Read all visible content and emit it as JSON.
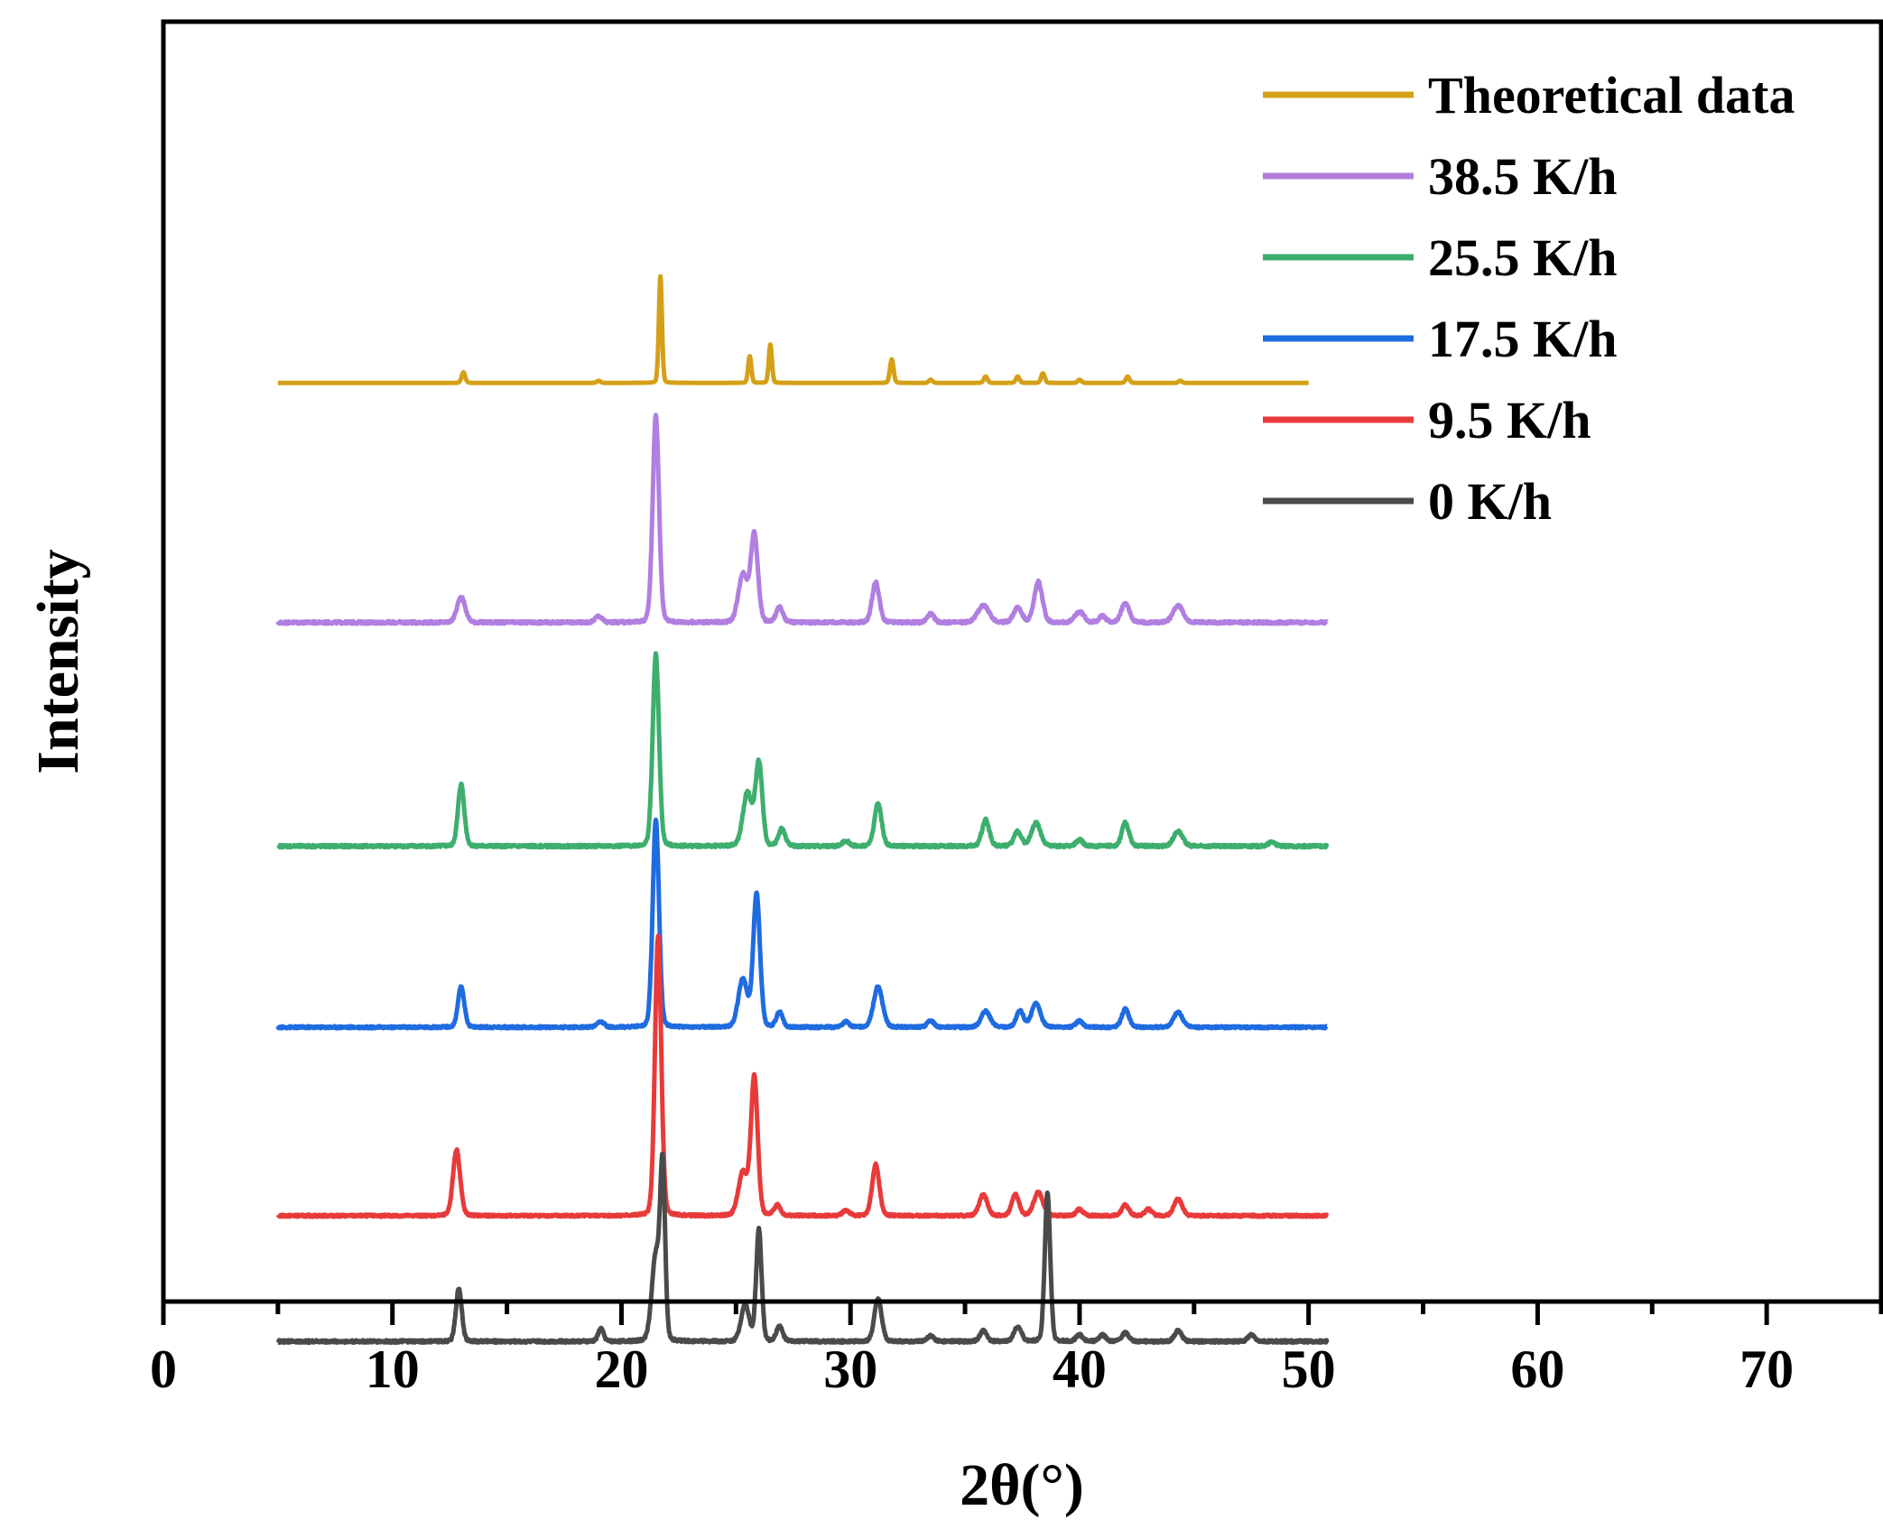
{
  "chart_data": {
    "type": "line",
    "title": "",
    "xlabel": "2θ(°)",
    "ylabel": "Intensity",
    "xlim": [
      0,
      75
    ],
    "x_ticks": [
      "0",
      "10",
      "20",
      "30",
      "40",
      "50",
      "60",
      "70"
    ],
    "x_tick_values": [
      0,
      10,
      20,
      30,
      40,
      50,
      60,
      70
    ],
    "x_minor_ticks": [
      5,
      15,
      25,
      35,
      45,
      55,
      65,
      75
    ],
    "y_ticks": "none",
    "grid": false,
    "legend_position": "top-right",
    "x_range_measured": [
      5,
      50.8
    ],
    "series": [
      {
        "name": "Theoretical data",
        "color": "#D4A017",
        "offset": 8.1,
        "x_end": 50.0,
        "noise": 0,
        "peaks": [
          {
            "x": 13.1,
            "h": 0.1,
            "w": 0.08
          },
          {
            "x": 19.0,
            "h": 0.02,
            "w": 0.08
          },
          {
            "x": 21.7,
            "h": 1.0,
            "w": 0.07
          },
          {
            "x": 25.6,
            "h": 0.25,
            "w": 0.07
          },
          {
            "x": 26.5,
            "h": 0.36,
            "w": 0.07
          },
          {
            "x": 31.8,
            "h": 0.22,
            "w": 0.08
          },
          {
            "x": 33.5,
            "h": 0.03,
            "w": 0.08
          },
          {
            "x": 35.9,
            "h": 0.06,
            "w": 0.08
          },
          {
            "x": 37.3,
            "h": 0.06,
            "w": 0.08
          },
          {
            "x": 38.4,
            "h": 0.09,
            "w": 0.08
          },
          {
            "x": 40.0,
            "h": 0.03,
            "w": 0.08
          },
          {
            "x": 42.1,
            "h": 0.06,
            "w": 0.08
          },
          {
            "x": 44.4,
            "h": 0.02,
            "w": 0.08
          }
        ]
      },
      {
        "name": "38.5 K/h",
        "color": "#B07FE0",
        "offset": 5.85,
        "x_end": 50.8,
        "noise": 0.012,
        "peaks": [
          {
            "x": 13.0,
            "h": 0.24,
            "w": 0.18
          },
          {
            "x": 19.0,
            "h": 0.06,
            "w": 0.15
          },
          {
            "x": 21.5,
            "h": 1.95,
            "w": 0.14
          },
          {
            "x": 25.3,
            "h": 0.45,
            "w": 0.2
          },
          {
            "x": 25.8,
            "h": 0.82,
            "w": 0.16
          },
          {
            "x": 26.9,
            "h": 0.14,
            "w": 0.15
          },
          {
            "x": 31.1,
            "h": 0.38,
            "w": 0.16
          },
          {
            "x": 33.5,
            "h": 0.08,
            "w": 0.15
          },
          {
            "x": 35.8,
            "h": 0.16,
            "w": 0.25
          },
          {
            "x": 37.3,
            "h": 0.14,
            "w": 0.18
          },
          {
            "x": 38.2,
            "h": 0.38,
            "w": 0.18
          },
          {
            "x": 40.0,
            "h": 0.1,
            "w": 0.2
          },
          {
            "x": 41.0,
            "h": 0.06,
            "w": 0.15
          },
          {
            "x": 42.0,
            "h": 0.18,
            "w": 0.18
          },
          {
            "x": 44.3,
            "h": 0.16,
            "w": 0.22
          }
        ]
      },
      {
        "name": "25.5 K/h",
        "color": "#3DAE6E",
        "offset": 3.75,
        "x_end": 50.8,
        "noise": 0.012,
        "peaks": [
          {
            "x": 13.0,
            "h": 0.58,
            "w": 0.14
          },
          {
            "x": 21.5,
            "h": 1.8,
            "w": 0.14
          },
          {
            "x": 25.5,
            "h": 0.5,
            "w": 0.2
          },
          {
            "x": 26.0,
            "h": 0.78,
            "w": 0.15
          },
          {
            "x": 27.0,
            "h": 0.16,
            "w": 0.15
          },
          {
            "x": 29.8,
            "h": 0.05,
            "w": 0.15
          },
          {
            "x": 31.2,
            "h": 0.4,
            "w": 0.16
          },
          {
            "x": 35.9,
            "h": 0.25,
            "w": 0.16
          },
          {
            "x": 37.3,
            "h": 0.14,
            "w": 0.16
          },
          {
            "x": 38.1,
            "h": 0.22,
            "w": 0.2
          },
          {
            "x": 40.0,
            "h": 0.06,
            "w": 0.15
          },
          {
            "x": 42.0,
            "h": 0.22,
            "w": 0.16
          },
          {
            "x": 44.3,
            "h": 0.14,
            "w": 0.2
          },
          {
            "x": 48.4,
            "h": 0.04,
            "w": 0.15
          }
        ]
      },
      {
        "name": "17.5 K/h",
        "color": "#1F6BE0",
        "offset": 2.05,
        "x_end": 50.8,
        "noise": 0.01,
        "peaks": [
          {
            "x": 13.0,
            "h": 0.38,
            "w": 0.14
          },
          {
            "x": 19.1,
            "h": 0.05,
            "w": 0.15
          },
          {
            "x": 21.5,
            "h": 1.95,
            "w": 0.14
          },
          {
            "x": 25.3,
            "h": 0.45,
            "w": 0.2
          },
          {
            "x": 25.9,
            "h": 1.25,
            "w": 0.15
          },
          {
            "x": 26.9,
            "h": 0.14,
            "w": 0.14
          },
          {
            "x": 29.8,
            "h": 0.05,
            "w": 0.15
          },
          {
            "x": 31.2,
            "h": 0.38,
            "w": 0.2
          },
          {
            "x": 33.5,
            "h": 0.06,
            "w": 0.15
          },
          {
            "x": 35.9,
            "h": 0.15,
            "w": 0.2
          },
          {
            "x": 37.4,
            "h": 0.15,
            "w": 0.16
          },
          {
            "x": 38.1,
            "h": 0.22,
            "w": 0.2
          },
          {
            "x": 40.0,
            "h": 0.06,
            "w": 0.15
          },
          {
            "x": 42.0,
            "h": 0.17,
            "w": 0.16
          },
          {
            "x": 44.3,
            "h": 0.14,
            "w": 0.2
          }
        ]
      },
      {
        "name": "9.5 K/h",
        "color": "#E83A3A",
        "offset": 0.28,
        "x_end": 50.8,
        "noise": 0.01,
        "peaks": [
          {
            "x": 12.8,
            "h": 0.62,
            "w": 0.16
          },
          {
            "x": 21.6,
            "h": 2.62,
            "w": 0.14
          },
          {
            "x": 25.3,
            "h": 0.4,
            "w": 0.2
          },
          {
            "x": 25.8,
            "h": 1.3,
            "w": 0.15
          },
          {
            "x": 26.8,
            "h": 0.1,
            "w": 0.14
          },
          {
            "x": 29.8,
            "h": 0.05,
            "w": 0.15
          },
          {
            "x": 31.1,
            "h": 0.48,
            "w": 0.16
          },
          {
            "x": 35.8,
            "h": 0.2,
            "w": 0.18
          },
          {
            "x": 37.2,
            "h": 0.2,
            "w": 0.16
          },
          {
            "x": 38.2,
            "h": 0.22,
            "w": 0.2
          },
          {
            "x": 40.0,
            "h": 0.06,
            "w": 0.15
          },
          {
            "x": 42.0,
            "h": 0.1,
            "w": 0.16
          },
          {
            "x": 43.0,
            "h": 0.06,
            "w": 0.15
          },
          {
            "x": 44.3,
            "h": 0.16,
            "w": 0.18
          }
        ]
      },
      {
        "name": "0 K/h",
        "color": "#4A4A4A",
        "offset": -0.9,
        "x_end": 50.8,
        "noise": 0.012,
        "peaks": [
          {
            "x": 12.9,
            "h": 0.5,
            "w": 0.13
          },
          {
            "x": 19.1,
            "h": 0.12,
            "w": 0.12
          },
          {
            "x": 21.5,
            "h": 0.8,
            "w": 0.18
          },
          {
            "x": 21.8,
            "h": 1.55,
            "w": 0.11
          },
          {
            "x": 25.4,
            "h": 0.35,
            "w": 0.18
          },
          {
            "x": 26.0,
            "h": 1.05,
            "w": 0.12
          },
          {
            "x": 26.9,
            "h": 0.14,
            "w": 0.14
          },
          {
            "x": 31.2,
            "h": 0.4,
            "w": 0.16
          },
          {
            "x": 33.5,
            "h": 0.05,
            "w": 0.15
          },
          {
            "x": 35.8,
            "h": 0.1,
            "w": 0.15
          },
          {
            "x": 37.3,
            "h": 0.14,
            "w": 0.16
          },
          {
            "x": 38.6,
            "h": 1.4,
            "w": 0.12
          },
          {
            "x": 40.0,
            "h": 0.06,
            "w": 0.15
          },
          {
            "x": 41.0,
            "h": 0.06,
            "w": 0.15
          },
          {
            "x": 42.0,
            "h": 0.08,
            "w": 0.15
          },
          {
            "x": 44.3,
            "h": 0.1,
            "w": 0.16
          },
          {
            "x": 47.5,
            "h": 0.06,
            "w": 0.15
          }
        ]
      }
    ]
  }
}
